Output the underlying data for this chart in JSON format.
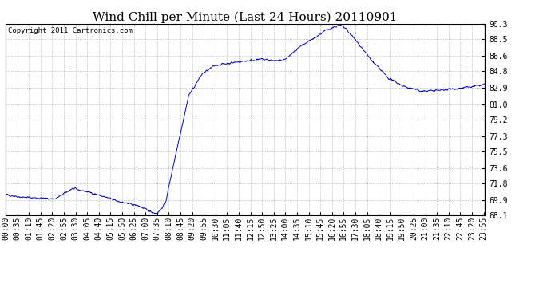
{
  "title": "Wind Chill per Minute (Last 24 Hours) 20110901",
  "copyright_text": "Copyright 2011 Cartronics.com",
  "yticks": [
    68.1,
    69.9,
    71.8,
    73.6,
    75.5,
    77.3,
    79.2,
    81.0,
    82.9,
    84.8,
    86.6,
    88.5,
    90.3
  ],
  "ymin": 68.1,
  "ymax": 90.3,
  "line_color": "#0000cc",
  "background_color": "#ffffff",
  "grid_color": "#aaaaaa",
  "title_fontsize": 11,
  "tick_fontsize": 7,
  "copyright_fontsize": 6.5,
  "x_labels": [
    "00:00",
    "00:35",
    "01:10",
    "01:45",
    "02:20",
    "02:55",
    "03:30",
    "04:05",
    "04:40",
    "05:15",
    "05:50",
    "06:25",
    "07:00",
    "07:35",
    "08:10",
    "08:45",
    "09:20",
    "09:55",
    "10:30",
    "11:05",
    "11:40",
    "12:15",
    "12:50",
    "13:25",
    "14:00",
    "14:35",
    "15:10",
    "15:45",
    "16:20",
    "16:55",
    "17:30",
    "18:05",
    "18:40",
    "19:15",
    "19:50",
    "20:25",
    "21:00",
    "21:35",
    "22:10",
    "22:45",
    "23:20",
    "23:55"
  ],
  "segments_x": [
    [
      0,
      50,
      150,
      200,
      250,
      300,
      350,
      400,
      430,
      455
    ],
    [
      455,
      480,
      510,
      550,
      590,
      630
    ],
    [
      630,
      680,
      720,
      770,
      820,
      840
    ],
    [
      840,
      880,
      920,
      960,
      990,
      1005,
      1020
    ],
    [
      1020,
      1060,
      1100,
      1150,
      1200
    ],
    [
      1200,
      1250,
      1300,
      1350,
      1400,
      1439
    ]
  ],
  "segments_y": [
    [
      70.5,
      70.2,
      70.0,
      71.2,
      70.8,
      70.2,
      69.6,
      69.2,
      68.6,
      68.3
    ],
    [
      68.3,
      69.5,
      75.0,
      82.0,
      84.5,
      85.5
    ],
    [
      85.5,
      85.8,
      86.0,
      86.2,
      86.0,
      86.2
    ],
    [
      86.2,
      87.5,
      88.5,
      89.5,
      90.0,
      90.1,
      89.8
    ],
    [
      89.8,
      88.0,
      86.0,
      84.0,
      83.0
    ],
    [
      83.0,
      82.5,
      82.6,
      82.8,
      83.0,
      83.3
    ]
  ]
}
